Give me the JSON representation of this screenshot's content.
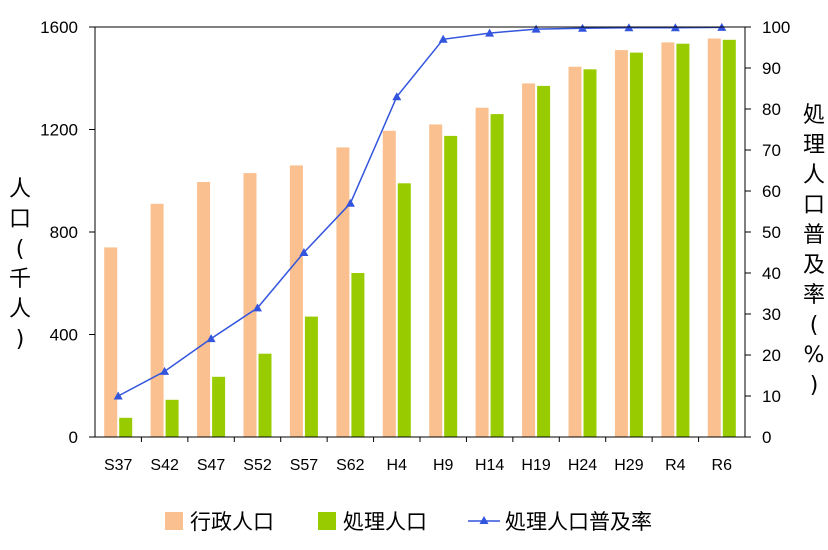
{
  "chart_data": {
    "type": "bar+line",
    "categories": [
      "S37",
      "S42",
      "S47",
      "S52",
      "S57",
      "S62",
      "H4",
      "H9",
      "H14",
      "H19",
      "H24",
      "H29",
      "R4",
      "R6"
    ],
    "series": [
      {
        "name": "行政人口",
        "kind": "bar",
        "axis": "left",
        "color": "#FAC090",
        "values": [
          740,
          910,
          995,
          1030,
          1060,
          1130,
          1195,
          1220,
          1285,
          1380,
          1445,
          1510,
          1540,
          1555
        ]
      },
      {
        "name": "処理人口",
        "kind": "bar",
        "axis": "left",
        "color": "#99CC00",
        "values": [
          75,
          145,
          235,
          325,
          470,
          640,
          990,
          1175,
          1260,
          1370,
          1435,
          1500,
          1535,
          1550
        ]
      },
      {
        "name": "処理人口普及率",
        "kind": "line",
        "axis": "right",
        "color": "#3355DD",
        "values": [
          10,
          16,
          24,
          31.5,
          45,
          57,
          83,
          97,
          98.5,
          99.5,
          99.7,
          99.8,
          99.8,
          99.9
        ]
      }
    ],
    "y_left": {
      "label": "人口(千人)",
      "min": 0,
      "max": 1600,
      "ticks": [
        "0",
        "400",
        "800",
        "1200",
        "1600"
      ],
      "tick_values": [
        0,
        400,
        800,
        1200,
        1600
      ]
    },
    "y_right": {
      "label": "処理人口普及率(%)",
      "min": 0,
      "max": 100,
      "ticks": [
        "0",
        "10",
        "20",
        "30",
        "40",
        "50",
        "60",
        "70",
        "80",
        "90",
        "100"
      ],
      "tick_values": [
        0,
        10,
        20,
        30,
        40,
        50,
        60,
        70,
        80,
        90,
        100
      ]
    },
    "grid": false,
    "legend_position": "bottom",
    "legend": [
      "行政人口",
      "処理人口",
      "処理人口普及率"
    ]
  }
}
